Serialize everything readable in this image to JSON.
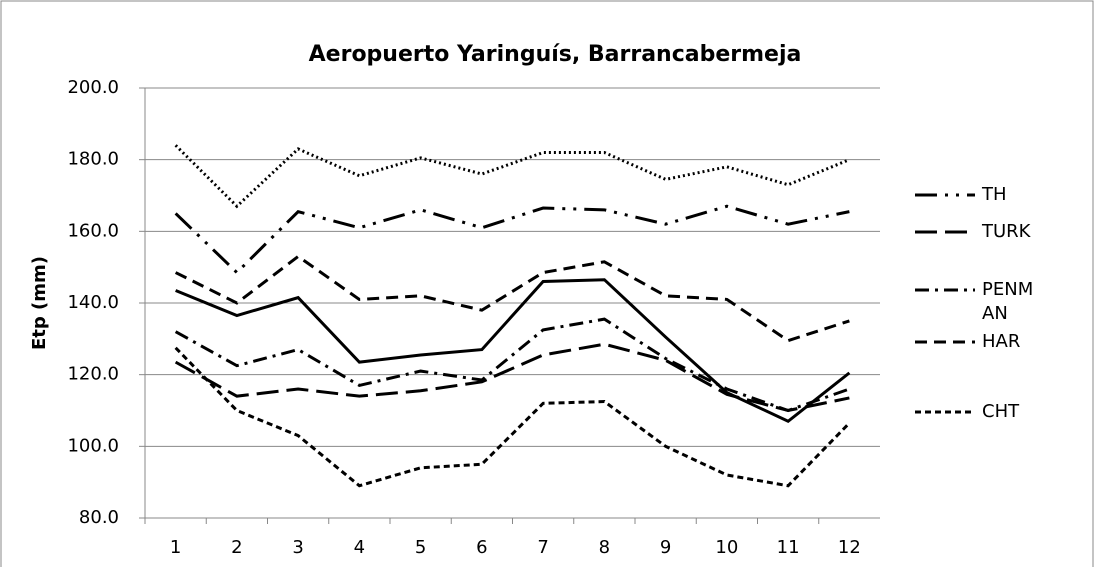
{
  "chart_data": {
    "type": "line",
    "title": "Aeropuerto Yaringuís, Barrancabermeja",
    "y_label": "Etp (mm)",
    "categories": [
      "1",
      "2",
      "3",
      "4",
      "5",
      "6",
      "7",
      "8",
      "9",
      "10",
      "11",
      "12"
    ],
    "ylim": [
      80,
      200
    ],
    "yticks": [
      {
        "value": 80,
        "label": "80.0"
      },
      {
        "value": 100,
        "label": "100.0"
      },
      {
        "value": 120,
        "label": "120.0"
      },
      {
        "value": 140,
        "label": "140.0"
      },
      {
        "value": 160,
        "label": "160.0"
      },
      {
        "value": 180,
        "label": "180.0"
      },
      {
        "value": 200,
        "label": "200.0"
      }
    ],
    "grid": true,
    "series": [
      {
        "name": "TH",
        "color": "#000000",
        "dash": "22 8 3 8 3 8",
        "values": [
          165,
          148.5,
          165.5,
          161,
          166,
          161,
          166.5,
          166,
          162,
          167,
          162,
          165.5
        ]
      },
      {
        "name": "TURK",
        "color": "#000000",
        "dash": "22 8",
        "values": [
          123.5,
          114,
          116,
          114,
          115.5,
          118,
          125.5,
          128.5,
          124,
          114.5,
          110,
          113.5
        ]
      },
      {
        "name": "PENMAN",
        "color": "#000000",
        "dash": "14 6 3 6",
        "values": [
          132,
          122.5,
          127,
          117,
          121,
          118.5,
          132.5,
          135.5,
          124.5,
          116,
          110,
          116
        ]
      },
      {
        "name": "HAR",
        "color": "#000000",
        "dash": "12 7",
        "values": [
          148.5,
          140,
          153,
          141,
          142,
          138,
          148.5,
          151.5,
          142,
          141,
          129.5,
          135
        ]
      },
      {
        "name": "CHT",
        "color": "#000000",
        "dash": "6 4",
        "values": [
          127.5,
          110,
          103,
          89,
          94,
          95,
          112,
          112.5,
          100,
          92,
          89,
          106.5
        ]
      },
      {
        "color": "#000000",
        "dash": "2 3",
        "values": [
          184,
          167,
          183,
          175.5,
          180.5,
          176,
          182,
          182,
          174.5,
          178,
          173,
          180
        ]
      },
      {
        "color": "#000000",
        "dash": "none",
        "values": [
          143.5,
          136.5,
          141.5,
          123.5,
          125.5,
          127,
          146,
          146.5,
          130.5,
          115,
          107,
          120.5
        ]
      }
    ]
  }
}
